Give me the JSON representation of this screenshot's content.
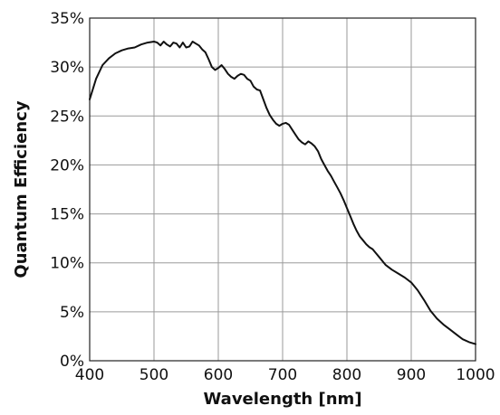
{
  "chart_data": {
    "type": "line",
    "title": "",
    "xlabel": "Wavelength [nm]",
    "ylabel": "Quantum Efficiency",
    "xlim": [
      400,
      1000
    ],
    "ylim": [
      0,
      35
    ],
    "x_ticks": [
      400,
      500,
      600,
      700,
      800,
      900,
      1000
    ],
    "x_tick_labels": [
      "400",
      "500",
      "600",
      "700",
      "800",
      "900",
      "1000"
    ],
    "y_ticks": [
      0,
      5,
      10,
      15,
      20,
      25,
      30,
      35
    ],
    "y_tick_labels": [
      "0%",
      "5%",
      "10%",
      "15%",
      "20%",
      "25%",
      "30%",
      "35%"
    ],
    "grid": true,
    "legend": "none",
    "series": [
      {
        "color": "#111111",
        "x": [
          400,
          410,
          420,
          430,
          440,
          450,
          460,
          470,
          480,
          490,
          500,
          505,
          510,
          515,
          520,
          525,
          530,
          535,
          540,
          545,
          550,
          555,
          560,
          565,
          570,
          575,
          580,
          585,
          590,
          595,
          600,
          605,
          610,
          615,
          620,
          625,
          630,
          635,
          640,
          645,
          650,
          655,
          660,
          665,
          670,
          675,
          680,
          685,
          690,
          695,
          700,
          705,
          710,
          715,
          720,
          725,
          730,
          735,
          740,
          745,
          750,
          755,
          760,
          765,
          770,
          775,
          780,
          785,
          790,
          795,
          800,
          805,
          810,
          815,
          820,
          825,
          830,
          835,
          840,
          845,
          850,
          860,
          870,
          880,
          890,
          900,
          910,
          920,
          930,
          940,
          950,
          960,
          970,
          980,
          990,
          1000
        ],
        "y": [
          26.7,
          28.8,
          30.2,
          30.9,
          31.4,
          31.7,
          31.9,
          32.0,
          32.3,
          32.5,
          32.6,
          32.5,
          32.2,
          32.6,
          32.3,
          32.1,
          32.5,
          32.4,
          32.0,
          32.5,
          32.0,
          32.1,
          32.6,
          32.4,
          32.2,
          31.8,
          31.5,
          30.8,
          30.0,
          29.7,
          29.9,
          30.2,
          29.8,
          29.3,
          29.0,
          28.8,
          29.1,
          29.3,
          29.2,
          28.8,
          28.6,
          28.0,
          27.7,
          27.6,
          26.7,
          25.8,
          25.1,
          24.6,
          24.2,
          24.0,
          24.2,
          24.3,
          24.1,
          23.6,
          23.1,
          22.6,
          22.3,
          22.1,
          22.4,
          22.2,
          21.9,
          21.4,
          20.6,
          20.0,
          19.4,
          18.9,
          18.3,
          17.7,
          17.1,
          16.4,
          15.6,
          14.8,
          14.0,
          13.3,
          12.7,
          12.3,
          11.9,
          11.6,
          11.4,
          11.0,
          10.6,
          9.8,
          9.3,
          8.9,
          8.5,
          8.0,
          7.2,
          6.2,
          5.1,
          4.3,
          3.7,
          3.2,
          2.7,
          2.2,
          1.9,
          1.7
        ]
      }
    ]
  }
}
